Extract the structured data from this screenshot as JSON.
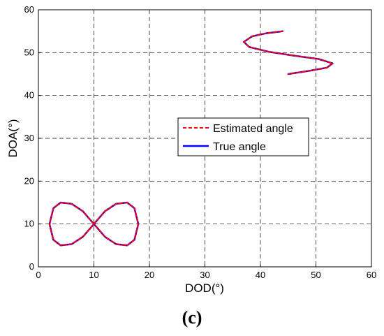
{
  "caption": "(c)",
  "chart_data": {
    "type": "line",
    "xlabel": "DOD(°)",
    "ylabel": "DOA(°)",
    "xlim": [
      0,
      60
    ],
    "ylim": [
      0,
      60
    ],
    "xticks": [
      0,
      10,
      20,
      30,
      40,
      50,
      60
    ],
    "yticks": [
      0,
      10,
      20,
      30,
      40,
      50,
      60
    ],
    "grid": true,
    "legend_position": "center-right",
    "series": [
      {
        "name": "Estimated angle",
        "style": "dashed",
        "color": "#ff0000",
        "segments": [
          {
            "x": [
              9.3,
              10.0,
              12.0,
              14.0,
              16.0,
              17.3,
              18.0,
              17.3,
              16.0,
              14.0,
              12.0,
              10.0,
              8.0,
              6.0,
              4.0,
              2.7,
              2.0,
              2.7,
              4.0,
              6.0,
              8.0,
              10.0
            ],
            "y": [
              8.9,
              10.0,
              13.0,
              14.7,
              15.0,
              13.7,
              10.0,
              6.3,
              5.0,
              5.3,
              7.0,
              10.0,
              13.0,
              14.7,
              15.0,
              13.7,
              10.0,
              6.3,
              5.0,
              5.3,
              7.0,
              10.0
            ]
          },
          {
            "x": [
              44.0,
              41.0,
              38.5,
              37.0,
              38.0,
              41.5,
              46.0,
              50.5,
              53.0,
              52.0,
              49.0,
              45.0
            ],
            "y": [
              55.0,
              54.5,
              53.8,
              52.5,
              51.3,
              50.2,
              49.3,
              48.5,
              47.5,
              46.5,
              45.8,
              45.0
            ]
          }
        ]
      },
      {
        "name": "True angle",
        "style": "solid",
        "color": "#0000ff",
        "segments": [
          {
            "x": [
              9.3,
              10.0,
              12.0,
              14.0,
              16.0,
              17.3,
              18.0,
              17.3,
              16.0,
              14.0,
              12.0,
              10.0,
              8.0,
              6.0,
              4.0,
              2.7,
              2.0,
              2.7,
              4.0,
              6.0,
              8.0,
              10.0
            ],
            "y": [
              8.9,
              10.0,
              13.0,
              14.7,
              15.0,
              13.7,
              10.0,
              6.3,
              5.0,
              5.3,
              7.0,
              10.0,
              13.0,
              14.7,
              15.0,
              13.7,
              10.0,
              6.3,
              5.0,
              5.3,
              7.0,
              10.0
            ]
          },
          {
            "x": [
              44.0,
              41.0,
              38.5,
              37.0,
              38.0,
              41.5,
              46.0,
              50.5,
              53.0,
              52.0,
              49.0,
              45.0
            ],
            "y": [
              55.0,
              54.5,
              53.8,
              52.5,
              51.3,
              50.2,
              49.3,
              48.5,
              47.5,
              46.5,
              45.8,
              45.0
            ]
          }
        ]
      }
    ]
  }
}
